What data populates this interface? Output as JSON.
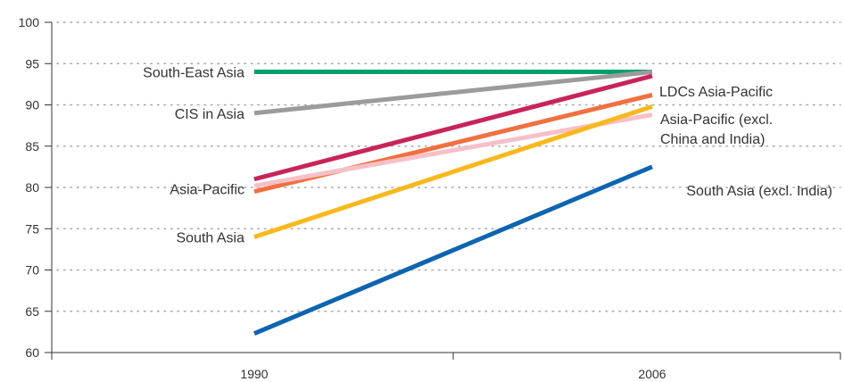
{
  "chart_data": {
    "type": "line",
    "categories": [
      "1990",
      "2006"
    ],
    "ylim": [
      60,
      100
    ],
    "yticks": [
      60,
      65,
      70,
      75,
      80,
      85,
      90,
      95,
      100
    ],
    "grid": "horizontal dotted",
    "series": [
      {
        "name": "South-East Asia",
        "color": "#00a06e",
        "values": [
          94,
          94
        ]
      },
      {
        "name": "CIS in Asia",
        "color": "#9b9b9b",
        "values": [
          89,
          94
        ]
      },
      {
        "name": "LDCs Asia-Pacific",
        "color": "#c8245a",
        "values": [
          81,
          93.5
        ]
      },
      {
        "name": "Asia-Pacific",
        "color": "#f07040",
        "values": [
          79.5,
          91.2
        ]
      },
      {
        "name": "Asia-Pacific (excl. China and India)",
        "color": "#f6c0c8",
        "values": [
          80.2,
          88.8
        ]
      },
      {
        "name": "South Asia",
        "color": "#f8b81e",
        "values": [
          74,
          89.8
        ]
      },
      {
        "name": "South Asia (excl. India)",
        "color": "#0e64b0",
        "values": [
          62.3,
          82.5
        ]
      }
    ],
    "labels": {
      "left": [
        {
          "series": 0,
          "text": "South-East Asia"
        },
        {
          "series": 1,
          "text": "CIS in Asia"
        },
        {
          "series": 3,
          "text": "Asia-Pacific"
        },
        {
          "series": 5,
          "text": "South Asia"
        }
      ],
      "right": [
        {
          "series": 2,
          "lines": [
            "LDCs Asia-Pacific"
          ]
        },
        {
          "series": 4,
          "lines": [
            "Asia-Pacific (excl.",
            "China and India)"
          ]
        },
        {
          "series": 6,
          "lines": [
            "South Asia (excl. India)"
          ]
        }
      ]
    }
  }
}
